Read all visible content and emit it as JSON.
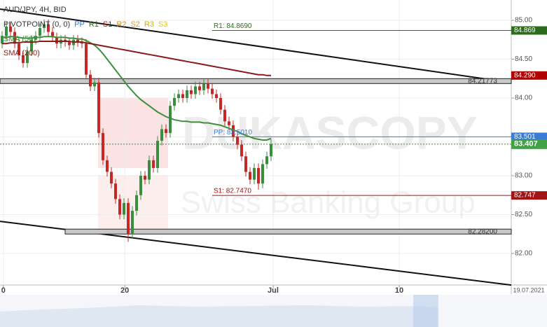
{
  "chart_data": {
    "type": "candlestick",
    "title": "AUD/JPY, 4H, BID",
    "pivot_title": "PIVOTPOINT (0, 0)",
    "pivot_items": [
      {
        "name": "PP",
        "color": "#3a7bd5"
      },
      {
        "name": "R1",
        "color": "#2e6b1f"
      },
      {
        "name": "S1",
        "color": "#a31515"
      },
      {
        "name": "R2",
        "color": "#e08a00"
      },
      {
        "name": "S2",
        "color": "#e0a020"
      },
      {
        "name": "R3",
        "color": "#d4b000"
      },
      {
        "name": "S3",
        "color": "#e8c800"
      }
    ],
    "x": [
      0,
      1,
      2,
      3,
      4,
      5,
      6,
      7,
      8,
      9,
      10,
      11,
      12,
      13,
      14,
      15,
      16,
      17,
      18,
      19,
      20,
      21,
      22,
      23,
      24,
      25,
      26,
      27,
      28,
      29,
      30,
      31,
      32,
      33,
      34,
      35,
      36,
      37,
      38,
      39,
      40,
      41,
      42,
      43,
      44,
      45,
      46,
      47,
      48,
      49,
      50,
      51,
      52,
      53,
      54,
      55,
      56,
      57,
      58,
      59,
      60,
      61,
      62,
      63,
      64
    ],
    "open": [
      84.7,
      84.8,
      84.92,
      84.85,
      84.7,
      84.55,
      84.45,
      84.6,
      84.75,
      84.8,
      84.9,
      84.95,
      84.85,
      84.78,
      84.7,
      84.75,
      84.72,
      84.68,
      84.75,
      84.72,
      84.7,
      84.3,
      84.15,
      84.2,
      83.55,
      83.2,
      83.05,
      82.9,
      82.7,
      82.5,
      82.65,
      82.25,
      82.55,
      82.75,
      83.0,
      82.95,
      83.2,
      83.1,
      83.45,
      83.6,
      83.55,
      83.9,
      84.0,
      84.05,
      84.0,
      84.1,
      84.05,
      84.15,
      84.1,
      84.18,
      84.12,
      84.05,
      84.0,
      83.85,
      83.7,
      83.65,
      83.5,
      83.4,
      83.25,
      83.05,
      82.95,
      83.1,
      82.9,
      83.15,
      83.25
    ],
    "high": [
      84.86,
      84.98,
      84.98,
      84.91,
      84.76,
      84.61,
      84.66,
      84.81,
      84.86,
      84.96,
      85.01,
      85.01,
      84.91,
      84.84,
      84.81,
      84.81,
      84.78,
      84.81,
      84.81,
      84.78,
      84.76,
      84.36,
      84.26,
      84.26,
      83.61,
      83.26,
      83.11,
      82.96,
      82.76,
      82.71,
      82.71,
      82.61,
      82.81,
      83.06,
      83.06,
      83.26,
      83.26,
      83.51,
      83.66,
      83.66,
      83.96,
      84.06,
      84.11,
      84.11,
      84.16,
      84.16,
      84.21,
      84.21,
      84.24,
      84.24,
      84.18,
      84.11,
      84.06,
      83.91,
      83.76,
      83.71,
      83.56,
      83.46,
      83.31,
      83.11,
      83.16,
      83.16,
      83.21,
      83.31,
      83.47
    ],
    "low": [
      84.64,
      84.74,
      84.79,
      84.64,
      84.49,
      84.39,
      84.39,
      84.54,
      84.69,
      84.74,
      84.84,
      84.79,
      84.72,
      84.64,
      84.64,
      84.66,
      84.62,
      84.62,
      84.66,
      84.64,
      84.24,
      84.09,
      84.09,
      83.49,
      83.14,
      82.99,
      82.84,
      82.64,
      82.44,
      82.44,
      82.15,
      82.19,
      82.49,
      82.69,
      82.89,
      82.89,
      83.04,
      83.04,
      83.39,
      83.49,
      83.49,
      83.84,
      83.94,
      83.94,
      83.94,
      83.99,
      83.99,
      84.04,
      84.04,
      84.06,
      83.99,
      83.94,
      83.79,
      83.64,
      83.59,
      83.44,
      83.34,
      83.19,
      82.99,
      82.89,
      82.89,
      82.82,
      82.84,
      83.09,
      83.19
    ],
    "close": [
      84.8,
      84.92,
      84.85,
      84.7,
      84.55,
      84.45,
      84.6,
      84.75,
      84.8,
      84.9,
      84.95,
      84.85,
      84.78,
      84.7,
      84.75,
      84.72,
      84.68,
      84.75,
      84.72,
      84.7,
      84.3,
      84.15,
      84.2,
      83.55,
      83.2,
      83.05,
      82.9,
      82.7,
      82.5,
      82.65,
      82.25,
      82.55,
      82.75,
      83.0,
      82.95,
      83.2,
      83.1,
      83.45,
      83.6,
      83.55,
      83.9,
      84.0,
      84.05,
      84.0,
      84.1,
      84.05,
      84.15,
      84.1,
      84.18,
      84.12,
      84.05,
      84.0,
      83.85,
      83.7,
      83.65,
      83.5,
      83.4,
      83.25,
      83.05,
      82.95,
      83.1,
      82.9,
      83.15,
      83.25,
      83.407
    ],
    "last_label": "83.407",
    "up_color": "#388e3c",
    "down_color": "#c62828",
    "series": [
      {
        "name": "SMA (50)",
        "color": "#3d8f3d",
        "values": [
          84.78,
          84.78,
          84.79,
          84.79,
          84.78,
          84.77,
          84.77,
          84.77,
          84.78,
          84.78,
          84.79,
          84.79,
          84.79,
          84.78,
          84.78,
          84.78,
          84.77,
          84.77,
          84.76,
          84.76,
          84.74,
          84.71,
          84.68,
          84.63,
          84.57,
          84.5,
          84.43,
          84.36,
          84.29,
          84.22,
          84.15,
          84.09,
          84.03,
          83.98,
          83.94,
          83.9,
          83.86,
          83.82,
          83.79,
          83.76,
          83.74,
          83.72,
          83.71,
          83.7,
          83.7,
          83.69,
          83.69,
          83.69,
          83.68,
          83.68,
          83.67,
          83.66,
          83.65,
          83.63,
          83.61,
          83.59,
          83.57,
          83.54,
          83.52,
          83.5,
          83.48,
          83.47,
          83.46,
          83.46,
          83.48
        ]
      },
      {
        "name": "SMA (200)",
        "color": "#8b1a1a",
        "last_label": "84.290",
        "values": [
          84.7,
          84.7,
          84.71,
          84.71,
          84.71,
          84.72,
          84.72,
          84.72,
          84.72,
          84.73,
          84.73,
          84.73,
          84.73,
          84.73,
          84.73,
          84.73,
          84.73,
          84.72,
          84.72,
          84.72,
          84.71,
          84.7,
          84.69,
          84.68,
          84.67,
          84.66,
          84.65,
          84.64,
          84.63,
          84.62,
          84.61,
          84.6,
          84.59,
          84.58,
          84.57,
          84.56,
          84.55,
          84.54,
          84.53,
          84.52,
          84.51,
          84.5,
          84.49,
          84.48,
          84.47,
          84.46,
          84.45,
          84.44,
          84.43,
          84.42,
          84.41,
          84.4,
          84.39,
          84.38,
          84.37,
          84.36,
          84.35,
          84.34,
          84.33,
          84.32,
          84.31,
          84.3,
          84.3,
          84.29,
          84.29
        ]
      }
    ],
    "levels": [
      {
        "value": 84.869,
        "label": "R1: 84.8690",
        "tag": "84.869",
        "color": "#2e6b1f",
        "start": 50
      },
      {
        "value": 83.501,
        "label": "PP: 83.5010",
        "tag": "83.501",
        "color": "#3a7bd5",
        "start": 50
      },
      {
        "value": 82.747,
        "label": "S1: 82.7470",
        "tag": "82.747",
        "color": "#a31515",
        "start": 50
      }
    ],
    "bands": [
      {
        "value": 84.21773,
        "label": "84.21773",
        "start": -0.5
      },
      {
        "value": 82.282,
        "label": "82.28200",
        "start": 15
      }
    ],
    "trendlines": [
      {
        "start": [
          -0.5,
          85.144
        ],
        "end": [
          121.17,
          84.198
        ]
      },
      {
        "start": [
          -0.5,
          82.414
        ],
        "end": [
          121.17,
          81.594
        ]
      }
    ],
    "xlim": [
      -0.5,
      121.17
    ],
    "ylim": [
      81.595,
      85.261
    ],
    "xticks": [
      {
        "value": 0.3,
        "label": "0"
      },
      {
        "value": 29.2,
        "label": "20"
      },
      {
        "value": 64.5,
        "label": "Jul"
      },
      {
        "value": 94.5,
        "label": "10"
      }
    ],
    "yticks": [
      {
        "value": 82,
        "label": "82.00"
      },
      {
        "value": 82.5,
        "label": "82.50"
      },
      {
        "value": 83,
        "label": "83.00"
      },
      {
        "value": 83.5,
        "label": "83.50"
      },
      {
        "value": 84,
        "label": "84.00"
      },
      {
        "value": 84.5,
        "label": "84.50"
      },
      {
        "value": 85,
        "label": "85.00"
      }
    ],
    "date_label": "19.07.2021",
    "grid": true,
    "watermark": [
      "DUKASCOPY",
      "Swiss Banking Group"
    ]
  }
}
